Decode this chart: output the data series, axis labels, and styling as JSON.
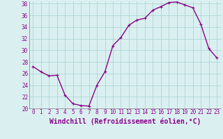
{
  "x": [
    0,
    1,
    2,
    3,
    4,
    5,
    6,
    7,
    8,
    9,
    10,
    11,
    12,
    13,
    14,
    15,
    16,
    17,
    18,
    19,
    20,
    21,
    22,
    23
  ],
  "y": [
    27.2,
    26.3,
    25.6,
    25.7,
    22.3,
    20.8,
    20.5,
    20.4,
    24.0,
    26.3,
    30.8,
    32.2,
    34.3,
    35.2,
    35.5,
    36.9,
    37.5,
    38.2,
    38.3,
    37.8,
    37.3,
    34.5,
    30.3,
    28.7
  ],
  "line_color": "#8b008b",
  "marker": "+",
  "marker_size": 3,
  "linewidth": 1.0,
  "xlabel": "Windchill (Refroidissement éolien,°C)",
  "xlabel_fontsize": 7,
  "ylim": [
    20,
    38
  ],
  "yticks": [
    20,
    22,
    24,
    26,
    28,
    30,
    32,
    34,
    36,
    38
  ],
  "xticks": [
    0,
    1,
    2,
    3,
    4,
    5,
    6,
    7,
    8,
    9,
    10,
    11,
    12,
    13,
    14,
    15,
    16,
    17,
    18,
    19,
    20,
    21,
    22,
    23
  ],
  "grid_color": "#b0d4d4",
  "bg_color": "#daf0f0",
  "tick_fontsize": 5.5,
  "xlabel_color": "#8b008b"
}
